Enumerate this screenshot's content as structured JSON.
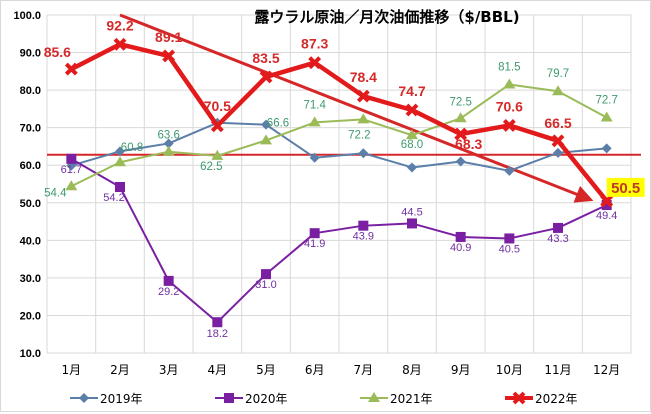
{
  "chart_data": {
    "type": "line",
    "title": "露ウラル原油／月次油価推移（$/BBL)",
    "xlabel": "",
    "ylabel": "",
    "categories": [
      "1月",
      "2月",
      "3月",
      "4月",
      "5月",
      "6月",
      "7月",
      "8月",
      "9月",
      "10月",
      "11月",
      "12月"
    ],
    "ylim": [
      10,
      100
    ],
    "yticks": [
      "10.0",
      "20.0",
      "30.0",
      "40.0",
      "50.0",
      "60.0",
      "70.0",
      "80.0",
      "90.0",
      "100.0"
    ],
    "ytick_values": [
      10,
      20,
      30,
      40,
      50,
      60,
      70,
      80,
      90,
      100
    ],
    "grid": true,
    "legend_position": "bottom",
    "series": [
      {
        "name": "2019年",
        "color": "#5b7fa8",
        "marker": "diamond",
        "values": [
          59.9,
          63.7,
          65.8,
          71.3,
          70.8,
          62.0,
          63.2,
          59.4,
          61.0,
          58.5,
          63.3,
          64.5
        ],
        "labels": []
      },
      {
        "name": "2020年",
        "color": "#7b1fa2",
        "marker": "square",
        "values": [
          61.7,
          54.2,
          29.2,
          18.2,
          31.0,
          41.9,
          43.9,
          44.5,
          40.9,
          40.5,
          43.3,
          49.4
        ],
        "labels": [
          "61.7",
          "54.2",
          "29.2",
          "18.2",
          "31.0",
          "41.9",
          "43.9",
          "44.5",
          "40.9",
          "40.5",
          "43.3",
          "49.4"
        ]
      },
      {
        "name": "2021年",
        "color": "#9bbb59",
        "marker": "triangle",
        "values": [
          54.4,
          60.8,
          63.6,
          62.5,
          66.6,
          71.4,
          72.2,
          68.0,
          72.5,
          81.5,
          79.7,
          72.7
        ],
        "labels": [
          "54.4",
          "60.8",
          "63.6",
          "62.5",
          "66.6",
          "71.4",
          "72.2",
          "68.0",
          "72.5",
          "81.5",
          "79.7",
          "72.7"
        ]
      },
      {
        "name": "2022年",
        "color": "#e31a1c",
        "marker": "x",
        "values": [
          85.6,
          92.2,
          89.1,
          70.5,
          83.5,
          87.3,
          78.4,
          74.7,
          68.3,
          70.6,
          66.5,
          50.5
        ],
        "labels": [
          "85.6",
          "92.2",
          "89.1",
          "70.5",
          "83.5",
          "87.3",
          "78.4",
          "74.7",
          "68.3",
          "70.6",
          "66.5",
          "50.5"
        ],
        "highlight_last": true,
        "highlight_color": "#ffff00"
      }
    ],
    "annotations": [
      {
        "type": "hline",
        "y": 62.8,
        "color": "#d62728"
      },
      {
        "type": "arrow",
        "from": {
          "x": "2月",
          "y": 100
        },
        "to": {
          "x": "12月",
          "y": 50.8
        },
        "color": "#d62728"
      }
    ]
  }
}
